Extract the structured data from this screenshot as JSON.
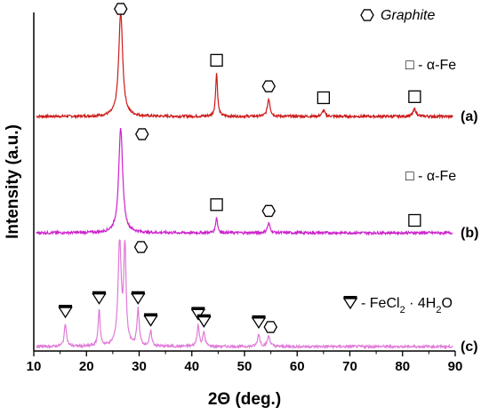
{
  "chart_data": {
    "type": "line",
    "xlabel": "2Θ (deg.)",
    "ylabel": "Intensity (a.u.)",
    "xlim": [
      10,
      90
    ],
    "x_ticks": [
      "10",
      "20",
      "30",
      "40",
      "50",
      "60",
      "70",
      "80",
      "90"
    ],
    "y_ticks_shown": false,
    "legend": {
      "graphite_label": "Graphite",
      "fe_label_a": "□ - α-Fe",
      "fe_label_b": "□ - α-Fe",
      "fecl_prefix": "- FeCl",
      "fecl_sub1": "2",
      "fecl_middle": " · 4H",
      "fecl_sub2": "2",
      "fecl_suffix": "O"
    },
    "series": [
      {
        "name": "(a)",
        "color": "#cc1a1a",
        "peaks": [
          {
            "x": 26.5,
            "height": 1.0,
            "width": 0.45,
            "marker": "hexagon"
          },
          {
            "x": 44.7,
            "height": 0.42,
            "width": 0.22,
            "marker": "square"
          },
          {
            "x": 54.6,
            "height": 0.17,
            "width": 0.3,
            "marker": "hexagon"
          },
          {
            "x": 65.0,
            "height": 0.06,
            "width": 0.3,
            "marker": "square"
          },
          {
            "x": 82.3,
            "height": 0.07,
            "width": 0.35,
            "marker": "square"
          }
        ]
      },
      {
        "name": "(b)",
        "color": "#cc22cc",
        "peaks": [
          {
            "x": 26.5,
            "height": 1.0,
            "width": 0.45,
            "marker": "hexagon"
          },
          {
            "x": 44.7,
            "height": 0.15,
            "width": 0.22,
            "marker": "square"
          },
          {
            "x": 54.6,
            "height": 0.09,
            "width": 0.3,
            "marker": "hexagon"
          },
          {
            "x": 82.3,
            "height": 0.0,
            "width": 0.35,
            "marker": "square"
          }
        ]
      },
      {
        "name": "(c)",
        "color": "#e07ad8",
        "peaks": [
          {
            "x": 16.0,
            "height": 0.22,
            "width": 0.25,
            "marker": "triangle"
          },
          {
            "x": 22.4,
            "height": 0.35,
            "width": 0.22,
            "marker": "triangle"
          },
          {
            "x": 26.3,
            "height": 1.0,
            "width": 0.35,
            "marker": "hexagon"
          },
          {
            "x": 27.3,
            "height": 0.95,
            "width": 0.25,
            "marker": "none"
          },
          {
            "x": 29.8,
            "height": 0.35,
            "width": 0.25,
            "marker": "triangle"
          },
          {
            "x": 32.2,
            "height": 0.14,
            "width": 0.25,
            "marker": "triangle"
          },
          {
            "x": 41.2,
            "height": 0.2,
            "width": 0.25,
            "marker": "triangle"
          },
          {
            "x": 42.3,
            "height": 0.13,
            "width": 0.25,
            "marker": "triangle"
          },
          {
            "x": 52.7,
            "height": 0.12,
            "width": 0.25,
            "marker": "triangle"
          },
          {
            "x": 54.6,
            "height": 0.1,
            "width": 0.3,
            "marker": "hexagon"
          }
        ]
      }
    ]
  }
}
